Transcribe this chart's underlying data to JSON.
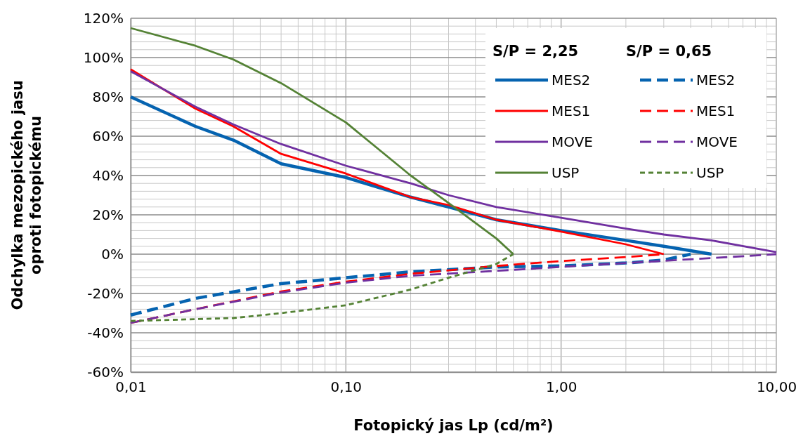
{
  "chart_data": {
    "type": "line",
    "xlabel": "Fotopický jas Lp (cd/m²)",
    "ylabel": "Odchylka mezopického jasu oproti fotopickému",
    "log": "x",
    "grid": true,
    "legend": "top right",
    "marker": "none",
    "annotations": [
      "S/P = 2,25",
      "S/P = 0,65"
    ],
    "xlim": [
      0.01,
      10
    ],
    "xticks": [
      {
        "value": 0.01,
        "label": "0,01"
      },
      {
        "value": 0.02,
        "label": null
      },
      {
        "value": 0.03,
        "label": null
      },
      {
        "value": 0.04,
        "label": null
      },
      {
        "value": 0.05,
        "label": null
      },
      {
        "value": 0.06,
        "label": null
      },
      {
        "value": 0.07,
        "label": null
      },
      {
        "value": 0.08,
        "label": null
      },
      {
        "value": 0.09,
        "label": null
      },
      {
        "value": 0.1,
        "label": "0,10"
      },
      {
        "value": 0.2,
        "label": null
      },
      {
        "value": 0.3,
        "label": null
      },
      {
        "value": 0.4,
        "label": null
      },
      {
        "value": 0.5,
        "label": null
      },
      {
        "value": 0.6,
        "label": null
      },
      {
        "value": 0.7,
        "label": null
      },
      {
        "value": 0.8,
        "label": null
      },
      {
        "value": 0.9,
        "label": null
      },
      {
        "value": 1,
        "label": "1,00"
      },
      {
        "value": 2,
        "label": null
      },
      {
        "value": 3,
        "label": null
      },
      {
        "value": 4,
        "label": null
      },
      {
        "value": 5,
        "label": null
      },
      {
        "value": 6,
        "label": null
      },
      {
        "value": 7,
        "label": null
      },
      {
        "value": 8,
        "label": null
      },
      {
        "value": 9,
        "label": null
      },
      {
        "value": 10,
        "label": "10,00"
      }
    ],
    "ylim": [
      -60,
      120
    ],
    "yticks": [
      {
        "value": -60,
        "label": "-60%"
      },
      {
        "value": -56,
        "label": null
      },
      {
        "value": -52,
        "label": null
      },
      {
        "value": -48,
        "label": null
      },
      {
        "value": -44,
        "label": null
      },
      {
        "value": -40,
        "label": "-40%"
      },
      {
        "value": -36,
        "label": null
      },
      {
        "value": -32,
        "label": null
      },
      {
        "value": -28,
        "label": null
      },
      {
        "value": -24,
        "label": null
      },
      {
        "value": -20,
        "label": "-20%"
      },
      {
        "value": -16,
        "label": null
      },
      {
        "value": -12,
        "label": null
      },
      {
        "value": -8,
        "label": null
      },
      {
        "value": -4,
        "label": null
      },
      {
        "value": 0,
        "label": "0%"
      },
      {
        "value": 4,
        "label": null
      },
      {
        "value": 8,
        "label": null
      },
      {
        "value": 12,
        "label": null
      },
      {
        "value": 16,
        "label": null
      },
      {
        "value": 20,
        "label": "20%"
      },
      {
        "value": 24,
        "label": null
      },
      {
        "value": 28,
        "label": null
      },
      {
        "value": 32,
        "label": null
      },
      {
        "value": 36,
        "label": null
      },
      {
        "value": 40,
        "label": "40%"
      },
      {
        "value": 44,
        "label": null
      },
      {
        "value": 48,
        "label": null
      },
      {
        "value": 52,
        "label": null
      },
      {
        "value": 56,
        "label": null
      },
      {
        "value": 60,
        "label": "60%"
      },
      {
        "value": 64,
        "label": null
      },
      {
        "value": 68,
        "label": null
      },
      {
        "value": 72,
        "label": null
      },
      {
        "value": 76,
        "label": null
      },
      {
        "value": 80,
        "label": "80%"
      },
      {
        "value": 84,
        "label": null
      },
      {
        "value": 88,
        "label": null
      },
      {
        "value": 92,
        "label": null
      },
      {
        "value": 96,
        "label": null
      },
      {
        "value": 100,
        "label": "100%"
      },
      {
        "value": 104,
        "label": null
      },
      {
        "value": 108,
        "label": null
      },
      {
        "value": 112,
        "label": null
      },
      {
        "value": 116,
        "label": null
      },
      {
        "value": 120,
        "label": "120%"
      }
    ],
    "series": [
      {
        "name": "MES2",
        "color": "#0563b0",
        "line_style": "solid",
        "x": [
          0.01,
          0.02,
          0.03,
          0.05,
          0.1,
          0.2,
          0.3,
          0.5,
          1,
          2,
          3,
          5
        ],
        "values": [
          80,
          65,
          58,
          46,
          39,
          29,
          24,
          17.5,
          12,
          7,
          4,
          0
        ]
      },
      {
        "name": "MES1",
        "color": "#ff0000",
        "line_style": "solid",
        "x": [
          0.01,
          0.02,
          0.03,
          0.05,
          0.1,
          0.2,
          0.3,
          0.5,
          1,
          2,
          3
        ],
        "values": [
          94,
          74,
          65,
          51,
          41,
          29,
          25,
          17.5,
          11.5,
          5,
          0
        ]
      },
      {
        "name": "MOVE",
        "color": "#7030a0",
        "line_style": "solid",
        "x": [
          0.01,
          0.02,
          0.03,
          0.05,
          0.1,
          0.2,
          0.3,
          0.5,
          1,
          2,
          3,
          5,
          10
        ],
        "values": [
          93,
          75,
          66,
          56,
          45,
          36,
          30,
          24,
          18.5,
          13,
          10,
          7,
          1
        ]
      },
      {
        "name": "USP",
        "color": "#548235",
        "line_style": "solid",
        "x": [
          0.01,
          0.02,
          0.03,
          0.05,
          0.1,
          0.2,
          0.3,
          0.5,
          0.6
        ],
        "values": [
          115,
          106,
          99,
          87,
          67,
          40,
          26,
          8,
          0
        ]
      },
      {
        "name": "MES2",
        "color": "#0563b0",
        "line_style": "dashed",
        "x": [
          0.01,
          0.02,
          0.05,
          0.1,
          0.2,
          0.5,
          1,
          2,
          3,
          4
        ],
        "values": [
          -31,
          -22.5,
          -15,
          -12,
          -9,
          -6.5,
          -6,
          -4.5,
          -3,
          0
        ]
      },
      {
        "name": "MES1",
        "color": "#ff0000",
        "line_style": "dashed",
        "x": [
          0.01,
          0.02,
          0.05,
          0.1,
          0.2,
          0.5,
          1,
          2,
          3
        ],
        "values": [
          -35,
          -28,
          -19,
          -14,
          -10,
          -6,
          -3.5,
          -1.5,
          0
        ]
      },
      {
        "name": "MOVE",
        "color": "#7030a0",
        "line_style": "dashed",
        "x": [
          0.01,
          0.02,
          0.05,
          0.1,
          0.2,
          0.5,
          1,
          2,
          5,
          10
        ],
        "values": [
          -35,
          -28,
          -19.5,
          -14.5,
          -11,
          -8.5,
          -6.5,
          -4.5,
          -2,
          0
        ]
      },
      {
        "name": "USP",
        "color": "#548235",
        "line_style": "dotted",
        "x": [
          0.01,
          0.03,
          0.05,
          0.1,
          0.2,
          0.3,
          0.5,
          0.6
        ],
        "values": [
          -34,
          -32.5,
          -30,
          -26,
          -18,
          -12,
          -5,
          0
        ]
      }
    ]
  }
}
